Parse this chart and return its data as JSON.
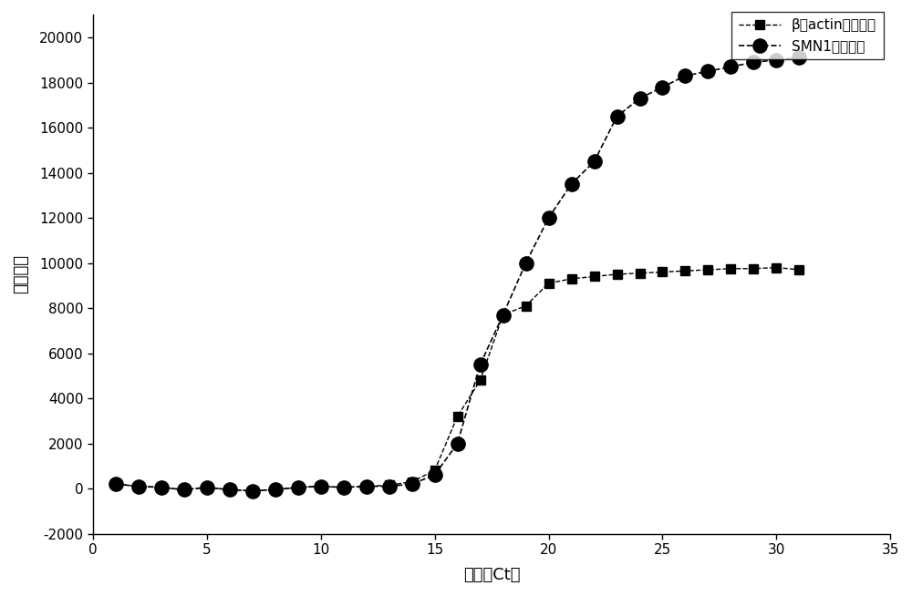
{
  "beta_actin_x": [
    1,
    2,
    3,
    4,
    5,
    6,
    7,
    8,
    9,
    10,
    11,
    12,
    13,
    14,
    15,
    16,
    17,
    18,
    19,
    20,
    21,
    22,
    23,
    24,
    25,
    26,
    27,
    28,
    29,
    30,
    31
  ],
  "beta_actin_y": [
    200,
    100,
    50,
    -50,
    50,
    -50,
    -100,
    -50,
    50,
    100,
    50,
    100,
    150,
    300,
    800,
    3200,
    4800,
    7700,
    8100,
    9100,
    9300,
    9400,
    9500,
    9550,
    9600,
    9650,
    9700,
    9750,
    9750,
    9800,
    9700
  ],
  "smn1_x": [
    1,
    2,
    3,
    4,
    5,
    6,
    7,
    8,
    9,
    10,
    11,
    12,
    13,
    14,
    15,
    16,
    17,
    18,
    19,
    20,
    21,
    22,
    23,
    24,
    25,
    26,
    27,
    28,
    29,
    30,
    31
  ],
  "smn1_y": [
    200,
    100,
    50,
    -50,
    50,
    -50,
    -100,
    -50,
    50,
    100,
    50,
    100,
    100,
    200,
    600,
    2000,
    5500,
    7700,
    10000,
    12000,
    13500,
    14500,
    16500,
    17300,
    17800,
    18300,
    18500,
    18700,
    18900,
    19000,
    19100
  ],
  "xlabel": "循环数Ct値",
  "ylabel": "荧光强度",
  "legend_beta": "β－actin扩增曲线",
  "legend_smn1": "SMN1扩增曲线",
  "xlim": [
    0,
    35
  ],
  "ylim": [
    -2000,
    21000
  ],
  "xticks": [
    0,
    5,
    10,
    15,
    20,
    25,
    30,
    35
  ],
  "yticks": [
    -2000,
    0,
    2000,
    4000,
    6000,
    8000,
    10000,
    12000,
    14000,
    16000,
    18000,
    20000
  ],
  "line_color": "#000000",
  "marker_square": "s",
  "marker_circle": "o",
  "markersize_square": 7,
  "markersize_circle": 11,
  "linewidth_dashed": 1.0,
  "linewidth_solid": 1.2,
  "background_color": "#ffffff",
  "figsize": [
    10.0,
    6.54
  ],
  "dpi": 100
}
